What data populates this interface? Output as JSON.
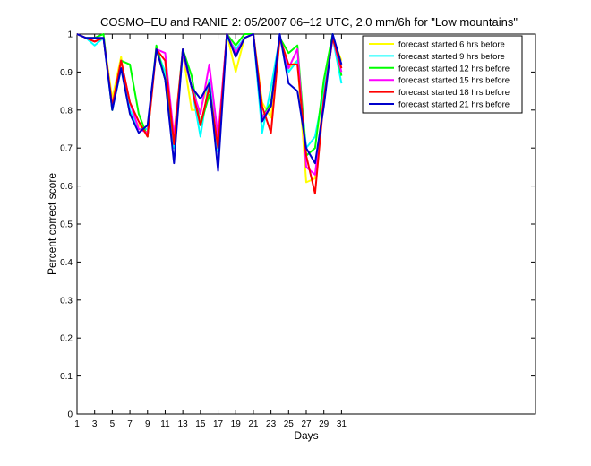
{
  "chart_data": {
    "type": "line",
    "title": "COSMO–EU and RANIE 2: 05/2007 06–12 UTC, 2.0 mm/6h for \"Low mountains\"",
    "xlabel": "Days",
    "ylabel": "Percent correct score",
    "xlim": [
      1,
      53
    ],
    "ylim": [
      0,
      1
    ],
    "xticks": [
      "1",
      "3",
      "5",
      "7",
      "9",
      "11",
      "13",
      "15",
      "17",
      "19",
      "21",
      "23",
      "25",
      "27",
      "29",
      "31"
    ],
    "yticks": [
      "0",
      "0.1",
      "0.2",
      "0.3",
      "0.4",
      "0.5",
      "0.6",
      "0.7",
      "0.8",
      "0.9",
      "1"
    ],
    "grid": false,
    "legend_position": "top-right",
    "x": [
      1,
      2,
      3,
      4,
      5,
      6,
      7,
      8,
      9,
      10,
      11,
      12,
      13,
      14,
      15,
      16,
      17,
      18,
      19,
      20,
      21,
      22,
      23,
      24,
      25,
      26,
      27,
      28,
      29,
      30,
      31
    ],
    "series": [
      {
        "name": "forecast started 6 hrs before",
        "color": "#ffff00",
        "values": [
          1.0,
          0.99,
          0.98,
          0.99,
          0.83,
          0.94,
          0.79,
          0.76,
          0.74,
          0.96,
          0.88,
          0.74,
          0.95,
          0.8,
          0.8,
          0.88,
          0.7,
          1.0,
          0.9,
          0.99,
          1.0,
          0.82,
          0.78,
          0.99,
          0.91,
          0.93,
          0.61,
          0.62,
          0.85,
          0.99,
          0.93
        ]
      },
      {
        "name": "forecast started 9 hrs before",
        "color": "#00ffff",
        "values": [
          1.0,
          0.99,
          0.97,
          0.99,
          0.8,
          0.91,
          0.8,
          0.75,
          0.75,
          0.96,
          0.9,
          0.7,
          0.95,
          0.86,
          0.73,
          0.88,
          0.69,
          0.99,
          0.96,
          0.99,
          1.0,
          0.74,
          0.86,
          0.99,
          0.9,
          0.93,
          0.7,
          0.73,
          0.85,
          0.99,
          0.87
        ]
      },
      {
        "name": "forecast started 12 hrs before",
        "color": "#00ff00",
        "values": [
          1.0,
          0.99,
          0.99,
          1.0,
          0.8,
          0.93,
          0.92,
          0.79,
          0.73,
          0.97,
          0.88,
          0.72,
          0.96,
          0.89,
          0.76,
          0.84,
          0.71,
          1.0,
          0.97,
          1.0,
          1.0,
          0.78,
          0.82,
          0.99,
          0.95,
          0.97,
          0.68,
          0.7,
          0.88,
          1.0,
          0.89
        ]
      },
      {
        "name": "forecast started 15 hrs before",
        "color": "#ff00ff",
        "values": [
          1.0,
          0.99,
          0.98,
          0.99,
          0.81,
          0.93,
          0.82,
          0.75,
          0.74,
          0.96,
          0.95,
          0.73,
          0.95,
          0.86,
          0.79,
          0.92,
          0.73,
          1.0,
          0.95,
          0.99,
          1.0,
          0.78,
          0.81,
          0.99,
          0.91,
          0.96,
          0.65,
          0.63,
          0.83,
          0.99,
          0.9
        ]
      },
      {
        "name": "forecast started 18 hrs before",
        "color": "#ff0000",
        "values": [
          1.0,
          0.99,
          0.98,
          0.99,
          0.81,
          0.93,
          0.82,
          0.77,
          0.73,
          0.96,
          0.93,
          0.71,
          0.96,
          0.86,
          0.76,
          0.86,
          0.7,
          1.0,
          0.94,
          0.99,
          1.0,
          0.81,
          0.74,
          0.99,
          0.92,
          0.92,
          0.68,
          0.58,
          0.83,
          0.99,
          0.91
        ]
      },
      {
        "name": "forecast started 21 hrs before",
        "color": "#0000cc",
        "values": [
          1.0,
          0.99,
          0.99,
          0.99,
          0.8,
          0.91,
          0.79,
          0.74,
          0.76,
          0.96,
          0.88,
          0.66,
          0.96,
          0.86,
          0.83,
          0.87,
          0.64,
          1.0,
          0.94,
          0.99,
          1.0,
          0.77,
          0.81,
          1.0,
          0.87,
          0.85,
          0.7,
          0.66,
          0.81,
          1.0,
          0.92
        ]
      }
    ]
  }
}
